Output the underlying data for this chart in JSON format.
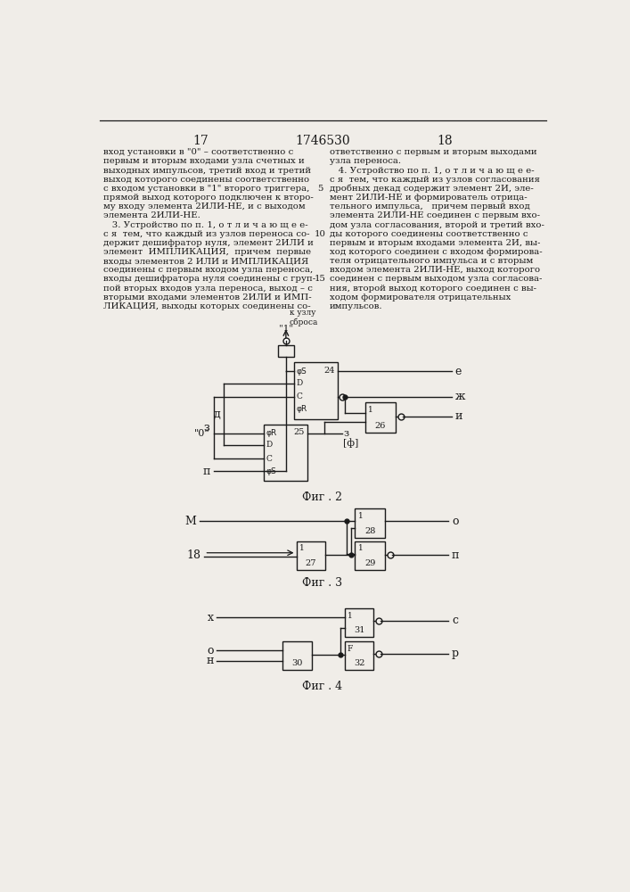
{
  "page_numbers": [
    "17",
    "1746530",
    "18"
  ],
  "text_left": [
    "вход установки в \"0\" – соответственно с",
    "первым и вторым входами узла счетных и",
    "выходных импульсов, третий вход и третий",
    "выход которого соединены соответственно",
    "с входом установки в \"1\" второго триггера,",
    "прямой выход которого подключен к второ-",
    "му входу элемента 2ИЛИ-НЕ, и с выходом",
    "элемента 2ИЛИ-НЕ.",
    "   3. Устройство по п. 1, о т л и ч а ю щ е е-",
    "с я  тем, что каждый из узлов переноса со-",
    "держит дешифратор нуля, элемент 2ИЛИ и",
    "элемент  ИМПЛИКАЦИЯ,  причем  первые",
    "входы элементов 2 ИЛИ и ИМПЛИКАЦИЯ",
    "соединены с первым входом узла переноса,",
    "входы дешифратора нуля соединены с груп-",
    "пой вторых входов узла переноса, выход – с",
    "вторыми входами элементов 2ИЛИ и ИМП-",
    "ЛИКАЦИЯ, выходы которых соединены со-"
  ],
  "text_right": [
    "ответственно с первым и вторым выходами",
    "узла переноса.",
    "   4. Устройство по п. 1, о т л и ч а ю щ е е-",
    "с я  тем, что каждый из узлов согласования",
    "дробных декад содержит элемент 2И, эле-",
    "мент 2ИЛИ-НЕ и формирователь отрица-",
    "тельного импульса,   причем первый вход",
    "элемента 2ИЛИ-НЕ соединен с первым вхо-",
    "дом узла согласования, второй и третий вхо-",
    "ды которого соединены соответственно с",
    "первым и вторым входами элемента 2И, вы-",
    "ход которого соединен с входом формирова-",
    "теля отрицательного импульса и с вторым",
    "входом элемента 2ИЛИ-НЕ, выход которого",
    "соединен с первым выходом узла согласова-",
    "ния, второй выход которого соединен с вы-",
    "ходом формирователя отрицательных",
    "импульсов."
  ],
  "background_color": "#f0ede8",
  "text_color": "#1a1a1a"
}
